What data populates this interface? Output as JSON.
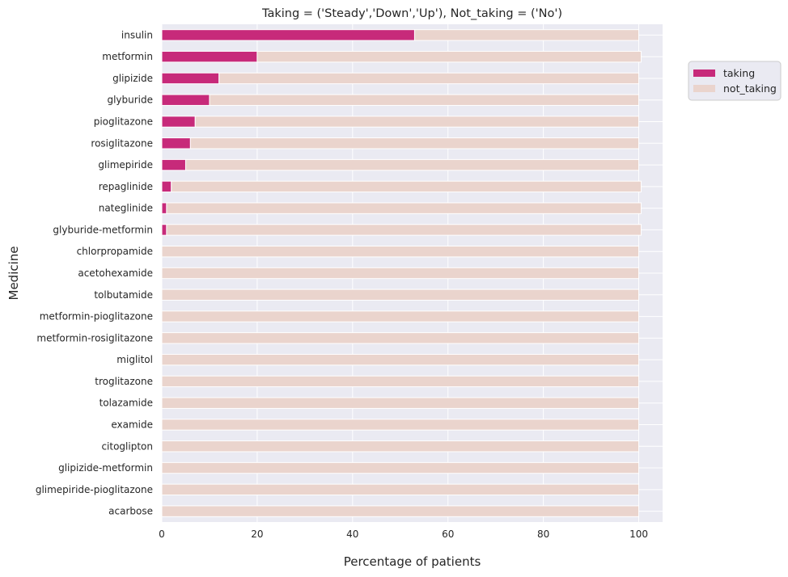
{
  "chart_data": {
    "type": "bar",
    "orientation": "horizontal",
    "stacked": true,
    "title": "Taking = ('Steady','Down','Up'), Not_taking = ('No')",
    "xlabel": "Percentage of patients",
    "ylabel": "Medicine",
    "xlim": [
      0,
      105
    ],
    "xticks": [
      0,
      20,
      40,
      60,
      80,
      100
    ],
    "grid": true,
    "legend_position": "top-right-outside",
    "categories": [
      "insulin",
      "metformin",
      "glipizide",
      "glyburide",
      "pioglitazone",
      "rosiglitazone",
      "glimepiride",
      "repaglinide",
      "nateglinide",
      "glyburide-metformin",
      "chlorpropamide",
      "acetohexamide",
      "tolbutamide",
      "metformin-pioglitazone",
      "metformin-rosiglitazone",
      "miglitol",
      "troglitazone",
      "tolazamide",
      "examide",
      "citoglipton",
      "glipizide-metformin",
      "glimepiride-pioglitazone",
      "acarbose"
    ],
    "series": [
      {
        "name": "taking",
        "color": "#c72a7a",
        "values": [
          53,
          20,
          12,
          10,
          7,
          6,
          5,
          2,
          1,
          1,
          0,
          0,
          0,
          0,
          0,
          0,
          0,
          0,
          0,
          0,
          0,
          0,
          0
        ]
      },
      {
        "name": "not_taking",
        "color": "#ead4cd",
        "values": [
          47,
          80.5,
          88,
          90,
          93,
          94,
          95,
          98.5,
          99.5,
          99.5,
          100,
          100,
          100,
          100,
          100,
          100,
          100,
          100,
          100,
          100,
          100,
          100,
          100
        ]
      }
    ]
  }
}
